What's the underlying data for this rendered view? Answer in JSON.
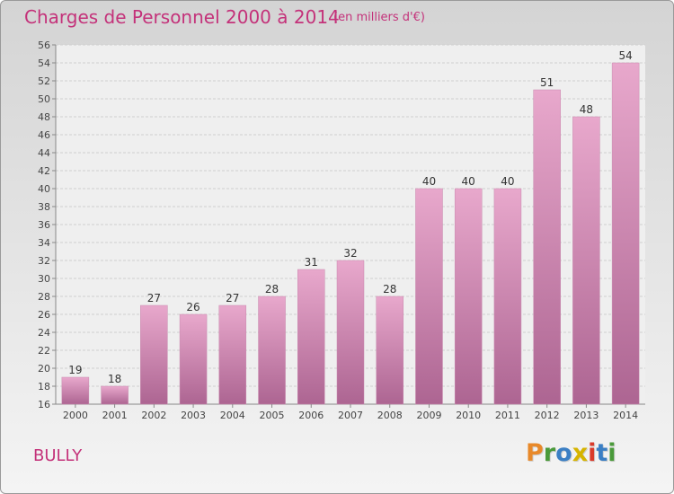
{
  "title": "Charges de Personnel 2000 à 2014",
  "subtitle": "(en milliers d'€)",
  "place": "BULLY",
  "logo": {
    "letters": [
      "P",
      "r",
      "o",
      "x",
      "i",
      "t",
      "i"
    ],
    "colors": [
      "#e8892a",
      "#4a9a3a",
      "#3b7fc4",
      "#d6b400",
      "#d93a2a",
      "#3b7fc4",
      "#4a9a3a"
    ]
  },
  "colors": {
    "text_accent": "#c4327a",
    "bar_top": "#e8a8cc",
    "bar_bottom": "#ad6592"
  },
  "chart_data": {
    "type": "bar",
    "title": "Charges de Personnel 2000 à 2014",
    "categories": [
      "2000",
      "2001",
      "2002",
      "2003",
      "2004",
      "2005",
      "2006",
      "2007",
      "2008",
      "2009",
      "2010",
      "2011",
      "2012",
      "2013",
      "2014"
    ],
    "values": [
      19,
      18,
      27,
      26,
      27,
      28,
      31,
      32,
      28,
      40,
      40,
      40,
      51,
      48,
      54
    ],
    "ylim": [
      16,
      56
    ],
    "yticks": [
      16,
      18,
      20,
      22,
      24,
      26,
      28,
      30,
      32,
      34,
      36,
      38,
      40,
      42,
      44,
      46,
      48,
      50,
      52,
      54,
      56
    ],
    "grid": true,
    "data_labels": true
  }
}
